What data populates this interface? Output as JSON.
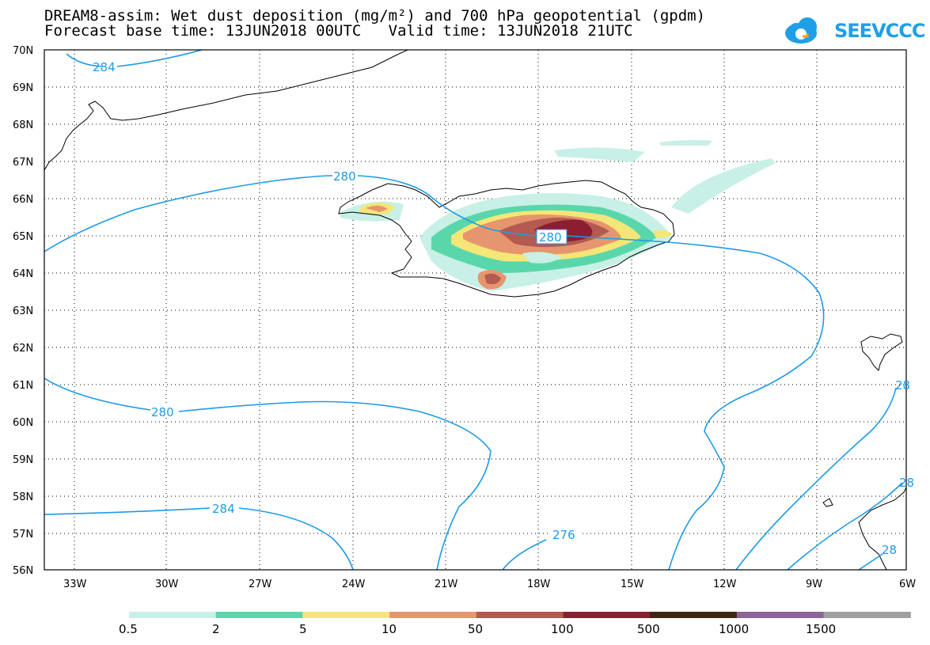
{
  "header": {
    "title_line1": "DREAM8-assim: Wet dust deposition (mg/m²) and 700 hPa geopotential (gpdm)",
    "title_line2": "Forecast base time: 13JUN2018 00UTC   Valid time: 13JUN2018 21UTC",
    "logo_text": "SEEVCCC"
  },
  "map": {
    "lat_labels": [
      "70N",
      "69N",
      "68N",
      "67N",
      "66N",
      "65N",
      "64N",
      "63N",
      "62N",
      "61N",
      "60N",
      "59N",
      "58N",
      "57N",
      "56N"
    ],
    "lon_labels": [
      "33W",
      "30W",
      "27W",
      "24W",
      "21W",
      "18W",
      "15W",
      "12W",
      "9W",
      "6W"
    ],
    "contour_labels": [
      "284",
      "280",
      "280",
      "280",
      "284",
      "276",
      "28",
      "28",
      "28"
    ],
    "contour_color": "#1e9be6"
  },
  "legend": {
    "values": [
      "0.5",
      "2",
      "5",
      "10",
      "50",
      "100",
      "500",
      "1000",
      "1500"
    ],
    "colors": [
      "#c8f0e6",
      "#5ad7aa",
      "#f5e678",
      "#e6966e",
      "#b45a50",
      "#8c1e32",
      "#3c2814",
      "#8c6496",
      "#a0a0a0"
    ]
  }
}
